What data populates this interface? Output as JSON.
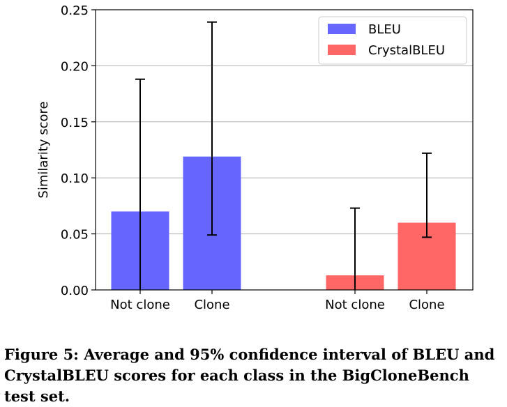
{
  "chart_data": {
    "type": "bar",
    "ylabel": "Similarity score",
    "ylim": [
      0,
      0.25
    ],
    "yticks": [
      "0.00",
      "0.05",
      "0.10",
      "0.15",
      "0.20",
      "0.25"
    ],
    "ytick_values": [
      0,
      0.05,
      0.1,
      0.15,
      0.2,
      0.25
    ],
    "grid": "horizontal",
    "legend_position": "top-right",
    "groups": [
      {
        "series": "BLEU",
        "categories": [
          "Not clone",
          "Clone"
        ],
        "values": [
          0.07,
          0.119
        ],
        "error_low": [
          0.0,
          0.049
        ],
        "error_high": [
          0.188,
          0.239
        ]
      },
      {
        "series": "CrystalBLEU",
        "categories": [
          "Not clone",
          "Clone"
        ],
        "values": [
          0.013,
          0.06
        ],
        "error_low": [
          0.0,
          0.047
        ],
        "error_high": [
          0.073,
          0.122
        ]
      }
    ],
    "series": [
      {
        "name": "BLEU",
        "color": "#6666ff"
      },
      {
        "name": "CrystalBLEU",
        "color": "#ff6666"
      }
    ]
  },
  "caption": "Figure 5: Average and 95% confidence interval of BLEU and CrystalBLEU scores for each class in the BigCloneBench test set."
}
